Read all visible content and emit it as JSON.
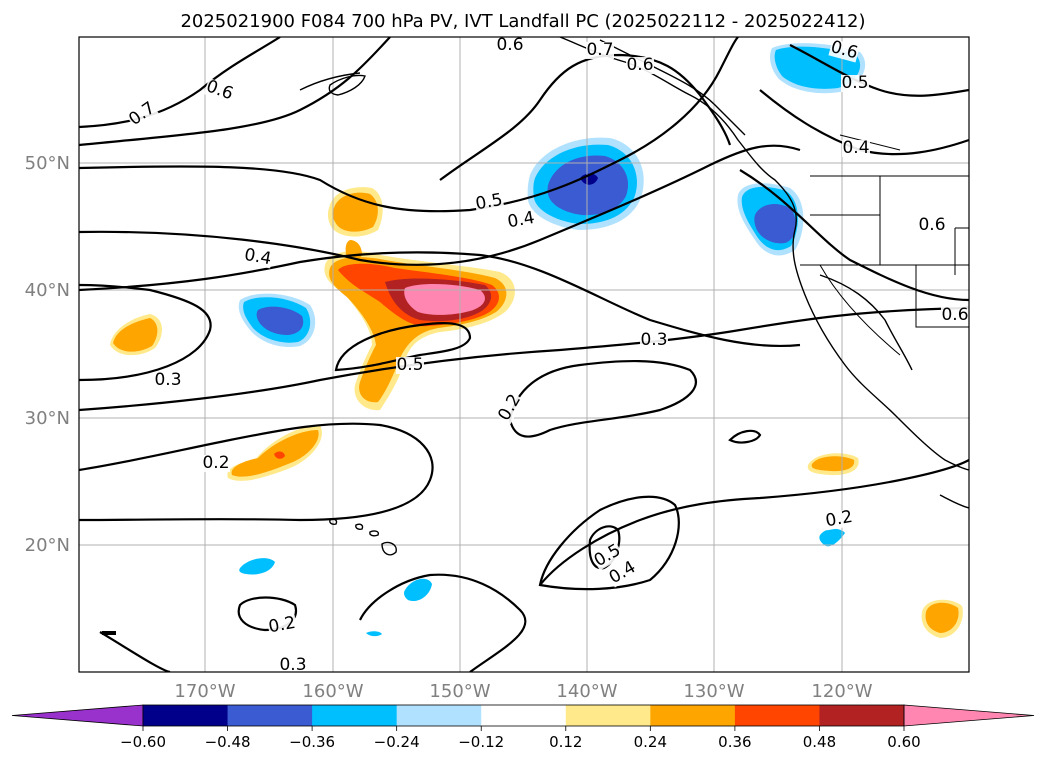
{
  "title": "2025021900 F084 700 hPa PV, IVT Landfall PC (2025022112 - 2025022412)",
  "lat_labels": [
    "50°N",
    "40°N",
    "30°N",
    "20°N"
  ],
  "lon_labels": [
    "170°W",
    "160°W",
    "150°W",
    "140°W",
    "130°W",
    "120°W"
  ],
  "contour_labels": [
    "0.6",
    "0.7",
    "0.6",
    "0.6",
    "0.5",
    "0.4",
    "0.7",
    "0.6",
    "0.5",
    "0.4",
    "0.4",
    "0.3",
    "0.3",
    "0.2",
    "0.2",
    "0.6",
    "0.2",
    "0.5",
    "0.4",
    "0.2",
    "0.3",
    "0.6",
    "0.5"
  ],
  "colorbar": {
    "ticks": [
      "−0.60",
      "−0.48",
      "−0.36",
      "−0.24",
      "−0.12",
      "0.12",
      "0.24",
      "0.36",
      "0.48",
      "0.60"
    ],
    "colors": [
      "#9932cc",
      "#00008b",
      "#3a5bd1",
      "#00bfff",
      "#b0e2ff",
      "#ffffff",
      "#ffe98a",
      "#ffa500",
      "#ff4500",
      "#b22222",
      "#ff86b0",
      "#ff86b0"
    ]
  },
  "palette": {
    "pink": "#ff86b0",
    "darkred": "#b22222",
    "orangered": "#ff4500",
    "orange": "#ffa500",
    "yellow": "#ffe98a",
    "lightblue": "#b0e2ff",
    "blue": "#00bfff",
    "royal": "#3a5bd1",
    "navy": "#00008b"
  }
}
